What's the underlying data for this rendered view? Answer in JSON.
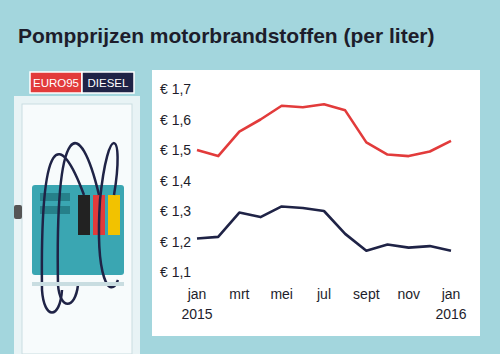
{
  "chart_data": {
    "type": "line",
    "title": "Pompprijzen motorbrandstoffen (per liter)",
    "categories": [
      "jan 2015",
      null,
      "mrt",
      null,
      "mei",
      null,
      "jul",
      null,
      "sept",
      null,
      "nov",
      null,
      "jan 2016"
    ],
    "series": [
      {
        "name": "EURO95",
        "color": "#e23b3b",
        "values": [
          1.5,
          1.48,
          1.56,
          1.6,
          1.645,
          1.64,
          1.65,
          1.63,
          1.525,
          1.485,
          1.48,
          1.495,
          1.53
        ]
      },
      {
        "name": "DIESEL",
        "color": "#1f2346",
        "values": [
          1.21,
          1.215,
          1.295,
          1.28,
          1.315,
          1.31,
          1.3,
          1.225,
          1.17,
          1.19,
          1.18,
          1.185,
          1.17
        ]
      }
    ],
    "ylim": [
      1.1,
      1.7
    ],
    "yticks": [
      {
        "value": 1.1,
        "label": "€ 1,1"
      },
      {
        "value": 1.2,
        "label": "€ 1,2"
      },
      {
        "value": 1.3,
        "label": "€ 1,3"
      },
      {
        "value": 1.4,
        "label": "€ 1,4"
      },
      {
        "value": 1.5,
        "label": "€ 1,5"
      },
      {
        "value": 1.6,
        "label": "€ 1,6"
      },
      {
        "value": 1.7,
        "label": "€ 1,7"
      }
    ],
    "grid": false
  }
}
